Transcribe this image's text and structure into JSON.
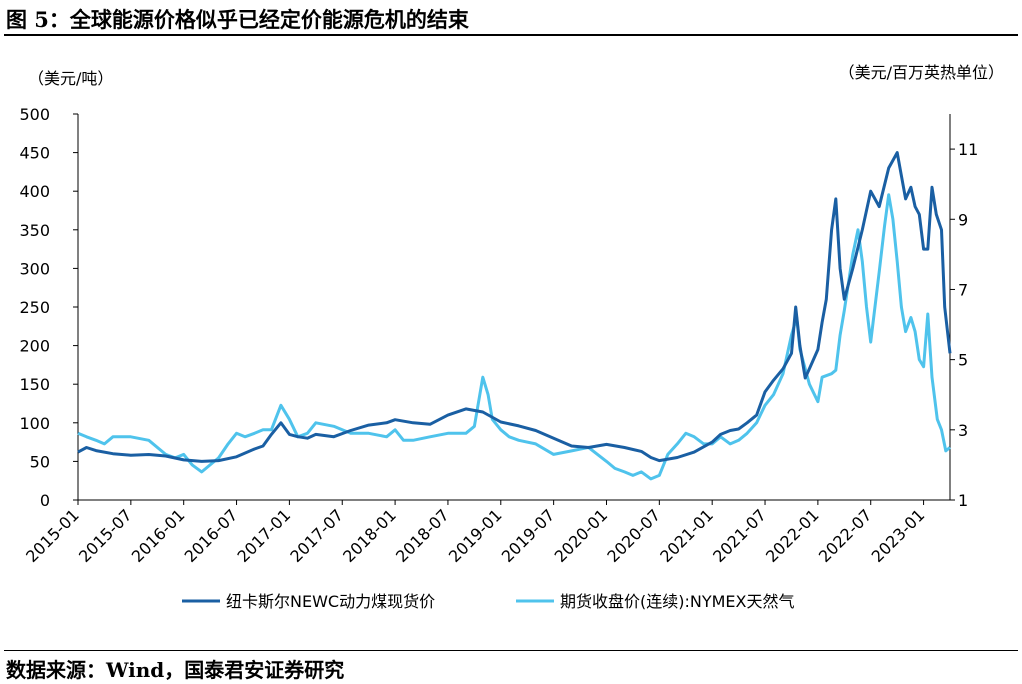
{
  "figure": {
    "title": "图 5：全球能源价格似乎已经定价能源危机的结束",
    "source": "数据来源：Wind，国泰君安证券研究"
  },
  "chart_data": {
    "type": "line",
    "left_unit": "（美元/吨）",
    "right_unit": "（美元/百万英热单位）",
    "x_labels": [
      "2015-01",
      "2015-07",
      "2016-01",
      "2016-07",
      "2017-01",
      "2017-07",
      "2018-01",
      "2018-07",
      "2019-01",
      "2019-07",
      "2020-01",
      "2020-07",
      "2021-01",
      "2021-07",
      "2022-01",
      "2022-07",
      "2023-01"
    ],
    "y_left": {
      "min": 0,
      "max": 500,
      "ticks": [
        0,
        50,
        100,
        150,
        200,
        250,
        300,
        350,
        400,
        450,
        500
      ]
    },
    "y_right": {
      "min": 1,
      "max": 12,
      "ticks": [
        1,
        3,
        5,
        7,
        9,
        11
      ]
    },
    "grid": false,
    "legend_position": "bottom",
    "series": [
      {
        "name": "纽卡斯尔NEWC动力煤现货价",
        "axis": "left",
        "color": "#1a5fa3",
        "points": [
          [
            2015.0,
            62
          ],
          [
            2015.08,
            68
          ],
          [
            2015.17,
            64
          ],
          [
            2015.33,
            60
          ],
          [
            2015.5,
            58
          ],
          [
            2015.67,
            59
          ],
          [
            2015.83,
            57
          ],
          [
            2016.0,
            52
          ],
          [
            2016.17,
            50
          ],
          [
            2016.33,
            51
          ],
          [
            2016.5,
            56
          ],
          [
            2016.67,
            66
          ],
          [
            2016.75,
            70
          ],
          [
            2016.83,
            85
          ],
          [
            2016.92,
            100
          ],
          [
            2017.0,
            85
          ],
          [
            2017.08,
            82
          ],
          [
            2017.17,
            80
          ],
          [
            2017.25,
            85
          ],
          [
            2017.42,
            82
          ],
          [
            2017.58,
            90
          ],
          [
            2017.75,
            97
          ],
          [
            2017.92,
            100
          ],
          [
            2018.0,
            104
          ],
          [
            2018.17,
            100
          ],
          [
            2018.33,
            98
          ],
          [
            2018.5,
            110
          ],
          [
            2018.67,
            118
          ],
          [
            2018.83,
            114
          ],
          [
            2019.0,
            101
          ],
          [
            2019.17,
            96
          ],
          [
            2019.33,
            90
          ],
          [
            2019.5,
            80
          ],
          [
            2019.67,
            70
          ],
          [
            2019.83,
            68
          ],
          [
            2020.0,
            72
          ],
          [
            2020.17,
            68
          ],
          [
            2020.33,
            63
          ],
          [
            2020.42,
            55
          ],
          [
            2020.5,
            51
          ],
          [
            2020.67,
            55
          ],
          [
            2020.83,
            62
          ],
          [
            2021.0,
            75
          ],
          [
            2021.08,
            85
          ],
          [
            2021.17,
            90
          ],
          [
            2021.25,
            92
          ],
          [
            2021.33,
            100
          ],
          [
            2021.42,
            110
          ],
          [
            2021.5,
            140
          ],
          [
            2021.58,
            155
          ],
          [
            2021.67,
            170
          ],
          [
            2021.75,
            190
          ],
          [
            2021.79,
            250
          ],
          [
            2021.83,
            200
          ],
          [
            2021.88,
            158
          ],
          [
            2021.92,
            170
          ],
          [
            2022.0,
            195
          ],
          [
            2022.04,
            230
          ],
          [
            2022.08,
            260
          ],
          [
            2022.13,
            350
          ],
          [
            2022.17,
            390
          ],
          [
            2022.21,
            300
          ],
          [
            2022.25,
            260
          ],
          [
            2022.33,
            300
          ],
          [
            2022.42,
            350
          ],
          [
            2022.5,
            400
          ],
          [
            2022.58,
            380
          ],
          [
            2022.67,
            430
          ],
          [
            2022.75,
            450
          ],
          [
            2022.83,
            390
          ],
          [
            2022.88,
            405
          ],
          [
            2022.92,
            380
          ],
          [
            2022.96,
            370
          ],
          [
            2023.0,
            325
          ],
          [
            2023.04,
            325
          ],
          [
            2023.08,
            405
          ],
          [
            2023.12,
            370
          ],
          [
            2023.17,
            350
          ],
          [
            2023.2,
            250
          ],
          [
            2023.25,
            190
          ]
        ]
      },
      {
        "name": "期货收盘价(连续):NYMEX天然气",
        "axis": "right",
        "color": "#4fc3ec",
        "points": [
          [
            2015.0,
            2.9
          ],
          [
            2015.08,
            2.8
          ],
          [
            2015.17,
            2.7
          ],
          [
            2015.25,
            2.6
          ],
          [
            2015.33,
            2.8
          ],
          [
            2015.42,
            2.8
          ],
          [
            2015.5,
            2.8
          ],
          [
            2015.67,
            2.7
          ],
          [
            2015.83,
            2.3
          ],
          [
            2015.92,
            2.2
          ],
          [
            2016.0,
            2.3
          ],
          [
            2016.08,
            2.0
          ],
          [
            2016.17,
            1.8
          ],
          [
            2016.25,
            2.0
          ],
          [
            2016.33,
            2.2
          ],
          [
            2016.42,
            2.6
          ],
          [
            2016.5,
            2.9
          ],
          [
            2016.58,
            2.8
          ],
          [
            2016.67,
            2.9
          ],
          [
            2016.75,
            3.0
          ],
          [
            2016.83,
            3.0
          ],
          [
            2016.92,
            3.7
          ],
          [
            2017.0,
            3.3
          ],
          [
            2017.08,
            2.8
          ],
          [
            2017.17,
            2.9
          ],
          [
            2017.25,
            3.2
          ],
          [
            2017.42,
            3.1
          ],
          [
            2017.58,
            2.9
          ],
          [
            2017.75,
            2.9
          ],
          [
            2017.92,
            2.8
          ],
          [
            2018.0,
            3.0
          ],
          [
            2018.08,
            2.7
          ],
          [
            2018.17,
            2.7
          ],
          [
            2018.33,
            2.8
          ],
          [
            2018.5,
            2.9
          ],
          [
            2018.67,
            2.9
          ],
          [
            2018.75,
            3.1
          ],
          [
            2018.83,
            4.5
          ],
          [
            2018.88,
            4.0
          ],
          [
            2018.92,
            3.3
          ],
          [
            2019.0,
            3.0
          ],
          [
            2019.08,
            2.8
          ],
          [
            2019.17,
            2.7
          ],
          [
            2019.33,
            2.6
          ],
          [
            2019.5,
            2.3
          ],
          [
            2019.67,
            2.4
          ],
          [
            2019.83,
            2.5
          ],
          [
            2020.0,
            2.1
          ],
          [
            2020.08,
            1.9
          ],
          [
            2020.17,
            1.8
          ],
          [
            2020.25,
            1.7
          ],
          [
            2020.33,
            1.8
          ],
          [
            2020.42,
            1.6
          ],
          [
            2020.5,
            1.7
          ],
          [
            2020.58,
            2.3
          ],
          [
            2020.67,
            2.6
          ],
          [
            2020.75,
            2.9
          ],
          [
            2020.83,
            2.8
          ],
          [
            2020.92,
            2.6
          ],
          [
            2021.0,
            2.6
          ],
          [
            2021.08,
            2.8
          ],
          [
            2021.17,
            2.6
          ],
          [
            2021.25,
            2.7
          ],
          [
            2021.33,
            2.9
          ],
          [
            2021.42,
            3.2
          ],
          [
            2021.5,
            3.7
          ],
          [
            2021.58,
            4.0
          ],
          [
            2021.67,
            4.6
          ],
          [
            2021.75,
            5.7
          ],
          [
            2021.8,
            6.2
          ],
          [
            2021.83,
            5.3
          ],
          [
            2021.92,
            4.3
          ],
          [
            2022.0,
            3.8
          ],
          [
            2022.04,
            4.5
          ],
          [
            2022.13,
            4.6
          ],
          [
            2022.17,
            4.7
          ],
          [
            2022.21,
            5.7
          ],
          [
            2022.25,
            6.4
          ],
          [
            2022.33,
            8.0
          ],
          [
            2022.38,
            8.7
          ],
          [
            2022.42,
            7.8
          ],
          [
            2022.46,
            6.5
          ],
          [
            2022.5,
            5.5
          ],
          [
            2022.58,
            7.5
          ],
          [
            2022.63,
            8.8
          ],
          [
            2022.67,
            9.7
          ],
          [
            2022.71,
            9.0
          ],
          [
            2022.75,
            7.8
          ],
          [
            2022.79,
            6.5
          ],
          [
            2022.83,
            5.8
          ],
          [
            2022.88,
            6.2
          ],
          [
            2022.92,
            5.8
          ],
          [
            2022.96,
            5.0
          ],
          [
            2023.0,
            4.8
          ],
          [
            2023.04,
            6.3
          ],
          [
            2023.08,
            4.5
          ],
          [
            2023.13,
            3.3
          ],
          [
            2023.17,
            3.0
          ],
          [
            2023.21,
            2.4
          ],
          [
            2023.25,
            2.5
          ]
        ]
      }
    ]
  }
}
